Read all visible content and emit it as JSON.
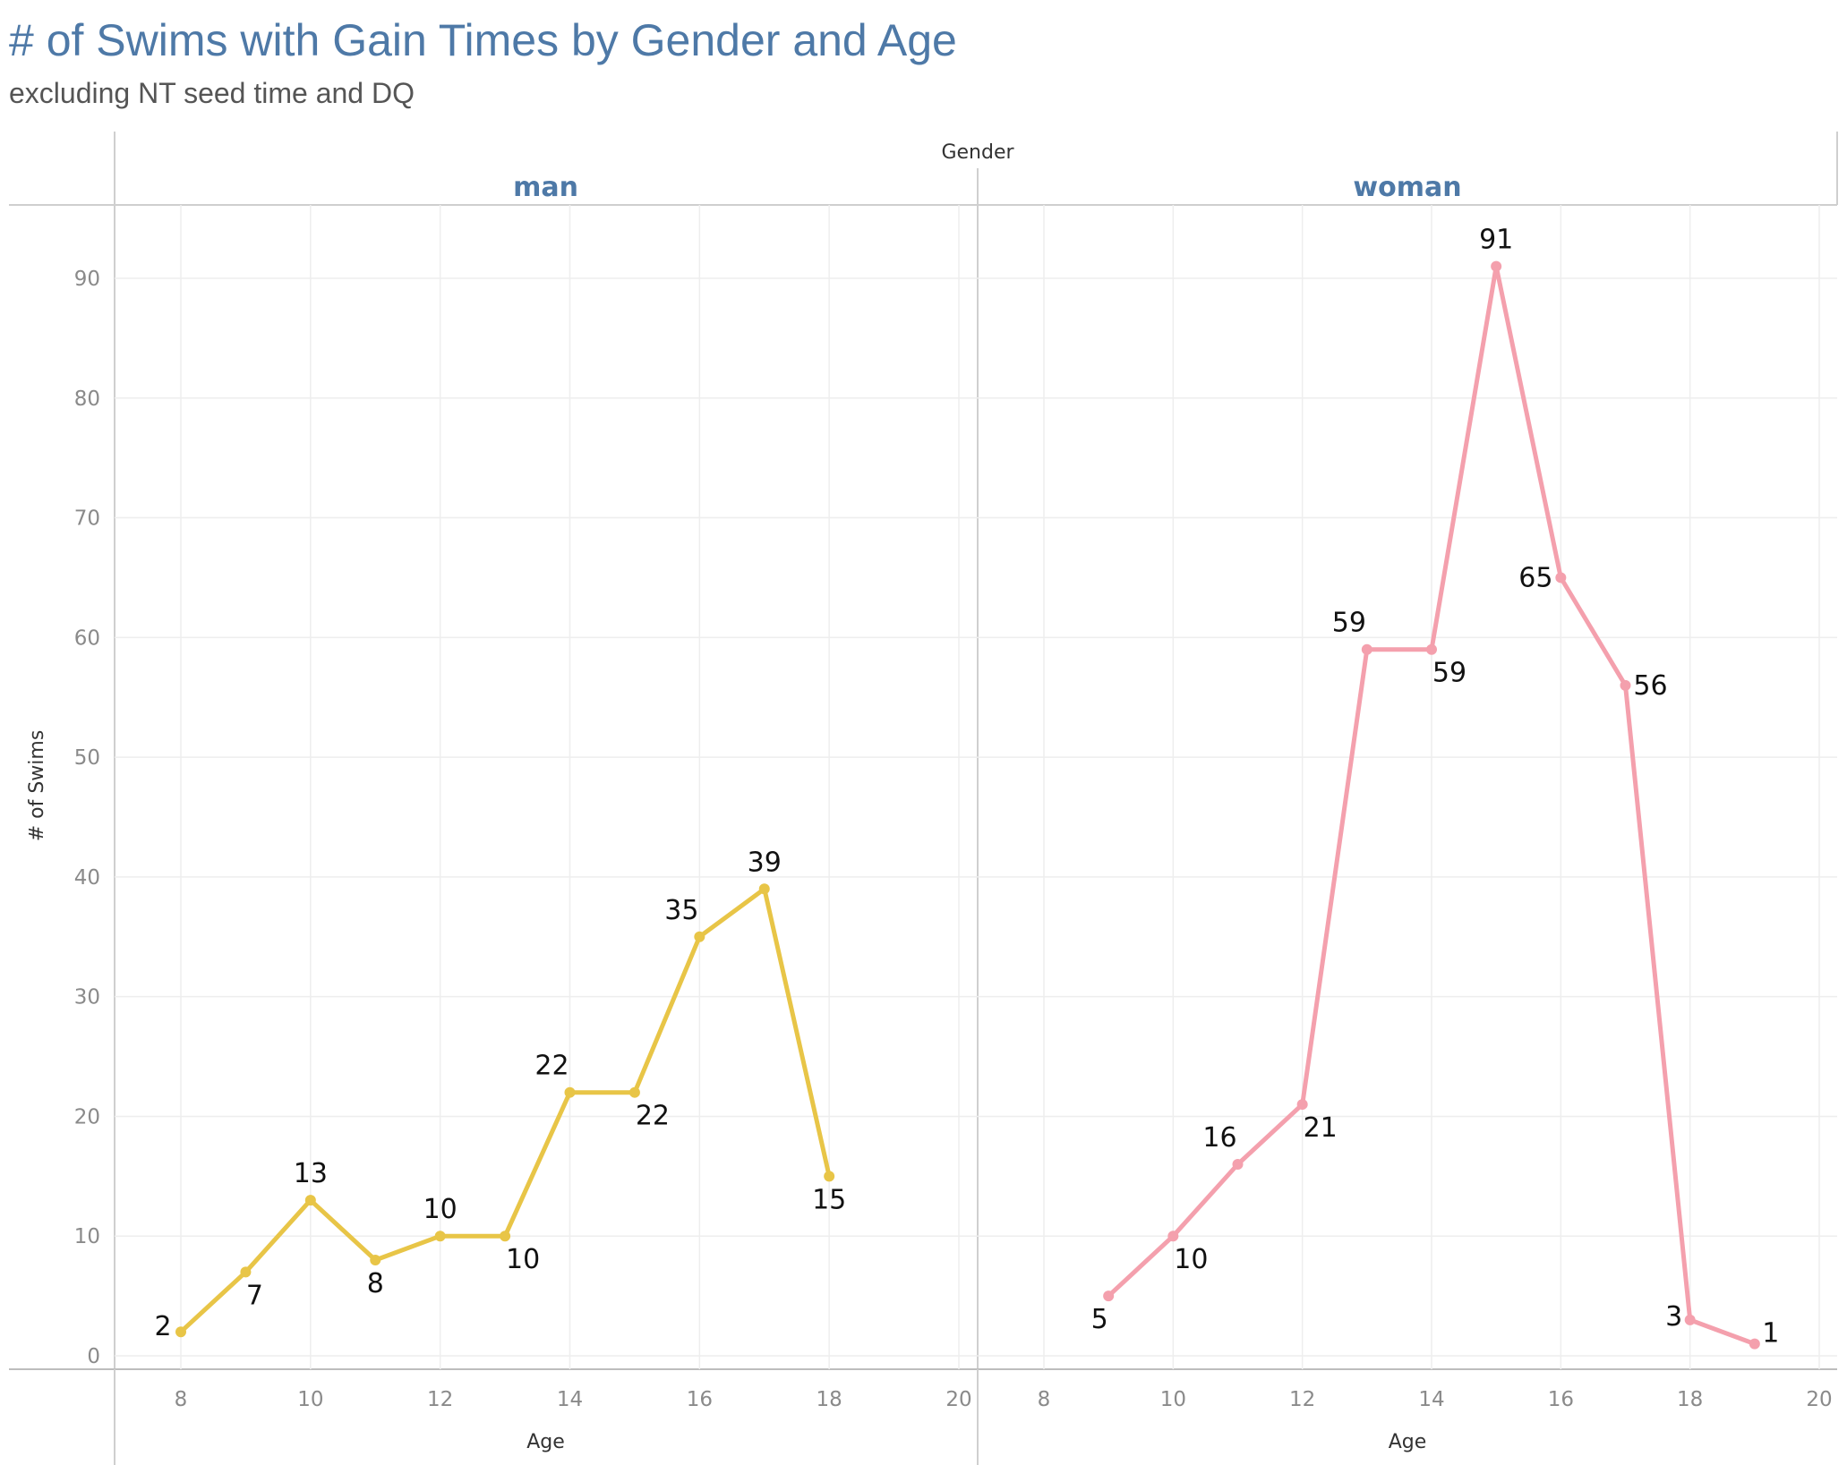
{
  "title": "# of Swims with Gain Times by Gender and Age",
  "subtitle": "excluding NT seed time and DQ",
  "chart_data": {
    "type": "line",
    "column_header": "Gender",
    "xlabel": "Age",
    "ylabel": "# of Swims",
    "xlim": [
      7,
      20
    ],
    "ylim": [
      0,
      96
    ],
    "x_ticks": [
      8,
      10,
      12,
      14,
      16,
      18,
      20
    ],
    "y_ticks": [
      0,
      10,
      20,
      30,
      40,
      50,
      60,
      70,
      80,
      90
    ],
    "grid": true,
    "panels": [
      {
        "name": "man",
        "color": "#e8c547",
        "points": [
          {
            "x": 8,
            "y": 2
          },
          {
            "x": 9,
            "y": 7
          },
          {
            "x": 10,
            "y": 13
          },
          {
            "x": 11,
            "y": 8
          },
          {
            "x": 12,
            "y": 10
          },
          {
            "x": 13,
            "y": 10
          },
          {
            "x": 14,
            "y": 22
          },
          {
            "x": 15,
            "y": 22
          },
          {
            "x": 16,
            "y": 35
          },
          {
            "x": 17,
            "y": 39
          },
          {
            "x": 18,
            "y": 15
          }
        ]
      },
      {
        "name": "woman",
        "color": "#f4a0ad",
        "points": [
          {
            "x": 9,
            "y": 5
          },
          {
            "x": 10,
            "y": 10
          },
          {
            "x": 11,
            "y": 16
          },
          {
            "x": 12,
            "y": 21
          },
          {
            "x": 13,
            "y": 59
          },
          {
            "x": 14,
            "y": 59
          },
          {
            "x": 15,
            "y": 91
          },
          {
            "x": 16,
            "y": 65
          },
          {
            "x": 17,
            "y": 56
          },
          {
            "x": 18,
            "y": 3
          },
          {
            "x": 19,
            "y": 1
          }
        ]
      }
    ]
  }
}
